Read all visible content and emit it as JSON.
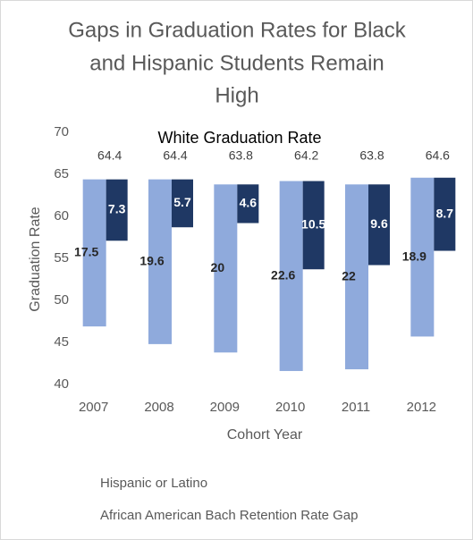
{
  "chart_data": {
    "type": "floating-bar",
    "title": [
      "Gaps in Graduation Rates for Black",
      "and Hispanic Students Remain",
      "High"
    ],
    "annotation": "White Graduation Rate",
    "x_label": "Cohort Year",
    "y_label": "Graduation Rate",
    "categories": [
      "2007",
      "2008",
      "2009",
      "2010",
      "2011",
      "2012"
    ],
    "reference": {
      "name": "White Graduation Rate",
      "values": [
        64.4,
        64.4,
        63.8,
        64.2,
        63.8,
        64.6
      ]
    },
    "series": [
      {
        "name": "Hispanic or Latino",
        "color": "#8faadc",
        "values": [
          17.5,
          19.6,
          20,
          22.6,
          22,
          18.9
        ]
      },
      {
        "name": "African American Bach Retention Rate Gap",
        "color": "#1f3864",
        "values": [
          7.3,
          5.7,
          4.6,
          10.5,
          9.6,
          8.7
        ]
      }
    ],
    "ylim": [
      40,
      70
    ],
    "yticks": [
      40,
      45,
      50,
      55,
      60,
      65,
      70
    ],
    "grid": false
  }
}
